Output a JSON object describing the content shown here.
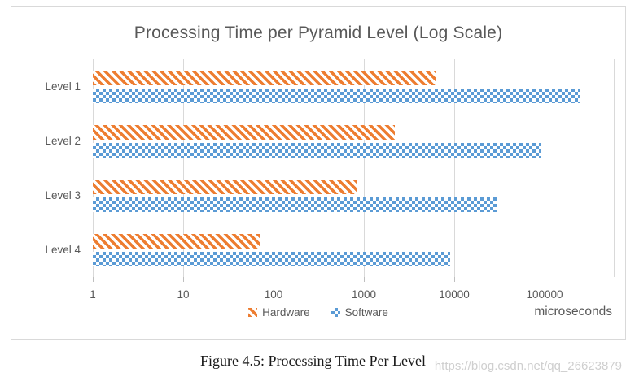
{
  "page": {
    "caption": "Figure 4.5: Processing Time Per Level",
    "watermark": "https://blog.csdn.net/qq_26623879"
  },
  "chart": {
    "title": "Processing Time per Pyramid Level (Log Scale)",
    "unit": "microseconds"
  },
  "colors": {
    "hardware": "#ED7D31",
    "software": "#5B9BD5",
    "grid": "#D9D9D9",
    "axis_text": "#595959"
  },
  "chart_data": {
    "type": "bar",
    "orientation": "horizontal",
    "x_scale": "log10",
    "title": "Processing Time per Pyramid Level (Log Scale)",
    "categories": [
      "Level 1",
      "Level 2",
      "Level 3",
      "Level 4"
    ],
    "series": [
      {
        "name": "Hardware",
        "color": "#ED7D31",
        "pattern": "diagonal-stripes",
        "values": [
          6400,
          2200,
          850,
          70
        ]
      },
      {
        "name": "Software",
        "color": "#5B9BD5",
        "pattern": "checkerboard",
        "values": [
          250000,
          90000,
          30000,
          9000
        ]
      }
    ],
    "x_ticks": [
      1,
      10,
      100,
      1000,
      10000,
      100000
    ],
    "x_range": [
      1,
      583000
    ],
    "xlabel": "microseconds",
    "legend_position": "bottom",
    "gridlines": "vertical"
  }
}
